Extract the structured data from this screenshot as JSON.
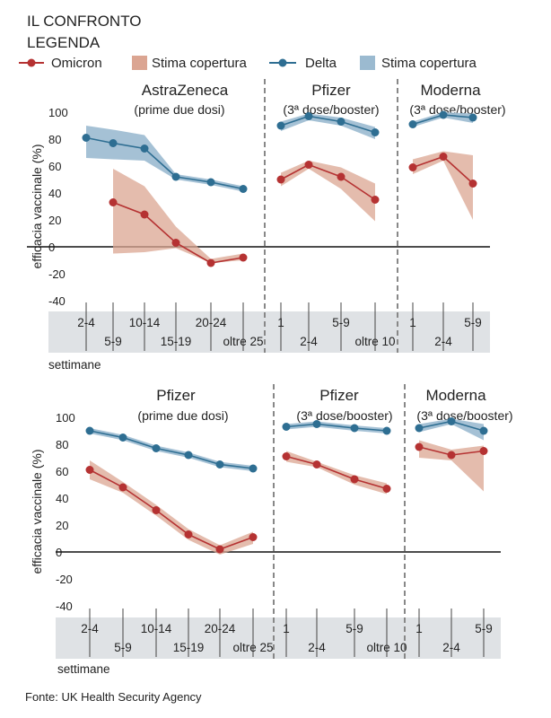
{
  "header": {
    "title": "IL CONFRONTO",
    "legend_label": "LEGENDA"
  },
  "legend": {
    "omicron": "Omicron",
    "omicron_band": "Stima copertura",
    "delta": "Delta",
    "delta_band": "Stima copertura"
  },
  "colors": {
    "omicron": "#b53232",
    "omicron_band": "#dba592",
    "delta": "#2e6e92",
    "delta_band": "#9bbad0"
  },
  "ylabel": "efficacia vaccinale (%)",
  "xlabel": "settimane",
  "source": "Fonte: UK Health Security Agency",
  "chart_data": [
    {
      "type": "line",
      "row": 1,
      "ylabel": "efficacia vaccinale (%)",
      "xlabel": "settimane",
      "ylim": [
        -40,
        100
      ],
      "yticks": [
        100,
        80,
        60,
        40,
        20,
        0,
        -20,
        -40
      ],
      "panels": [
        {
          "title": "AstraZeneca",
          "subtitle": "(prime due dosi)",
          "categories": [
            "2-4",
            "5-9",
            "10-14",
            "15-19",
            "20-24",
            "oltre 25"
          ],
          "series": [
            {
              "name": "Delta",
              "values": [
                81,
                77,
                73,
                52,
                48,
                43
              ],
              "low": [
                66,
                65,
                64,
                50,
                46,
                41
              ],
              "high": [
                90,
                87,
                83,
                54,
                50,
                45
              ]
            },
            {
              "name": "Omicron",
              "values": [
                null,
                33,
                24,
                3,
                -12,
                -8
              ],
              "low": [
                null,
                -5,
                -4,
                -1,
                -12,
                -10
              ],
              "high": [
                null,
                58,
                45,
                15,
                -9,
                -5
              ]
            }
          ]
        },
        {
          "title": "Pfizer",
          "subtitle": "(3ª dose/booster)",
          "categories": [
            "1",
            "2-4",
            "5-9",
            "oltre 10"
          ],
          "series": [
            {
              "name": "Delta",
              "values": [
                90,
                97,
                93,
                85
              ],
              "low": [
                86,
                94,
                90,
                80
              ],
              "high": [
                93,
                99,
                96,
                89
              ]
            },
            {
              "name": "Omicron",
              "values": [
                50,
                61,
                52,
                35
              ],
              "low": [
                45,
                58,
                43,
                19
              ],
              "high": [
                55,
                64,
                59,
                47
              ]
            }
          ]
        },
        {
          "title": "Moderna",
          "subtitle": "(3ª dose/booster)",
          "categories": [
            "1",
            "2-4",
            "5-9"
          ],
          "series": [
            {
              "name": "Delta",
              "values": [
                91,
                98,
                96
              ],
              "low": [
                89,
                96,
                92
              ],
              "high": [
                93,
                100,
                99
              ]
            },
            {
              "name": "Omicron",
              "values": [
                59,
                67,
                47
              ],
              "low": [
                54,
                64,
                20
              ],
              "high": [
                65,
                71,
                68
              ]
            }
          ]
        }
      ]
    },
    {
      "type": "line",
      "row": 2,
      "ylabel": "efficacia vaccinale (%)",
      "xlabel": "settimane",
      "ylim": [
        -40,
        100
      ],
      "yticks": [
        100,
        80,
        60,
        40,
        20,
        0,
        -20,
        -40
      ],
      "panels": [
        {
          "title": "Pfizer",
          "subtitle": "(prime due dosi)",
          "categories": [
            "2-4",
            "5-9",
            "10-14",
            "15-19",
            "20-24",
            "oltre 25"
          ],
          "series": [
            {
              "name": "Delta",
              "values": [
                90,
                85,
                77,
                72,
                65,
                62
              ],
              "low": [
                88,
                83,
                75,
                70,
                63,
                60
              ],
              "high": [
                92,
                87,
                79,
                74,
                67,
                64
              ]
            },
            {
              "name": "Omicron",
              "values": [
                61,
                48,
                31,
                13,
                2,
                11
              ],
              "low": [
                54,
                44,
                27,
                9,
                -2,
                6
              ],
              "high": [
                68,
                52,
                35,
                17,
                5,
                15
              ]
            }
          ]
        },
        {
          "title": "Pfizer",
          "subtitle": "(3ª dose/booster)",
          "categories": [
            "1",
            "2-4",
            "5-9",
            "oltre 10"
          ],
          "series": [
            {
              "name": "Delta",
              "values": [
                93,
                95,
                92,
                90
              ],
              "low": [
                91,
                93,
                90,
                88
              ],
              "high": [
                95,
                97,
                94,
                92
              ]
            },
            {
              "name": "Omicron",
              "values": [
                71,
                65,
                54,
                47
              ],
              "low": [
                67,
                63,
                50,
                43
              ],
              "high": [
                75,
                67,
                57,
                51
              ]
            }
          ]
        },
        {
          "title": "Moderna",
          "subtitle": "(3ª dose/booster)",
          "categories": [
            "1",
            "2-4",
            "5-9"
          ],
          "series": [
            {
              "name": "Delta",
              "values": [
                92,
                97,
                90
              ],
              "low": [
                89,
                95,
                83
              ],
              "high": [
                95,
                99,
                95
              ]
            },
            {
              "name": "Omicron",
              "values": [
                78,
                72,
                75
              ],
              "low": [
                70,
                68,
                45
              ],
              "high": [
                83,
                76,
                79
              ]
            }
          ]
        }
      ]
    }
  ]
}
